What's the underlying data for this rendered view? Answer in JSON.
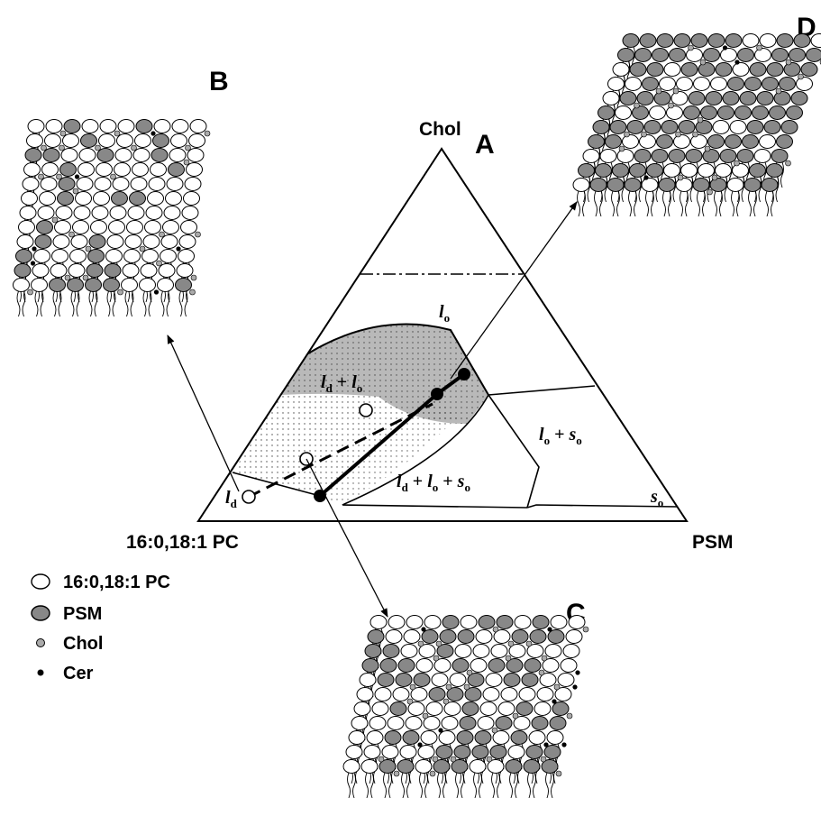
{
  "panels": {
    "A": "A",
    "B": "B",
    "C": "C",
    "D": "D"
  },
  "vertices": {
    "top": "Chol",
    "left": "16:0,18:1 PC",
    "right": "PSM"
  },
  "phases": {
    "lo": {
      "base": "l",
      "sub": "o"
    },
    "ld_lo": {
      "parts": [
        [
          "l",
          "d"
        ],
        [
          "l",
          "o"
        ]
      ]
    },
    "lo_so": {
      "parts": [
        [
          "l",
          "o"
        ],
        [
          "s",
          "o"
        ]
      ]
    },
    "ld_lo_so": {
      "parts": [
        [
          "l",
          "d"
        ],
        [
          "l",
          "o"
        ],
        [
          "s",
          "o"
        ]
      ]
    },
    "so": {
      "base": "s",
      "sub": "o"
    },
    "ld": {
      "base": "l",
      "sub": "d"
    }
  },
  "legend": [
    {
      "label": "16:0,18:1 PC",
      "marker": "white-ellipse"
    },
    {
      "label": "PSM",
      "marker": "gray-ellipse"
    },
    {
      "label": "Chol",
      "marker": "small-gray-dot"
    },
    {
      "label": "Cer",
      "marker": "small-black-dot"
    }
  ],
  "colors": {
    "lipid_pc": "#ffffff",
    "lipid_psm": "#888888",
    "chol": "#aaaaaa",
    "cer": "#000000",
    "region_shade": "#b8b8b8"
  }
}
